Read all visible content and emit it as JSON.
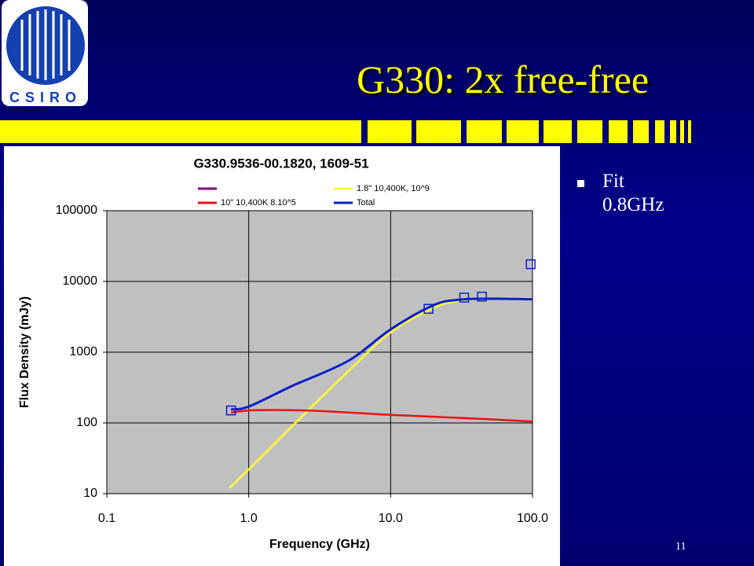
{
  "slide": {
    "title": "G330:  2x free-free",
    "logo": "CSIRO",
    "bullets": [
      "Fit 0.8GHz"
    ],
    "page_number": "11"
  },
  "chart_data": {
    "type": "line",
    "title": "G330.9536-00.1820, 1609-51",
    "x_label": "Frequency (GHz)",
    "y_label": "Flux Density (mJy)",
    "xlog": true,
    "ylog": true,
    "grid": true,
    "xlim": [
      0.1,
      100
    ],
    "ylim": [
      10,
      100000
    ],
    "xticks": [
      0.1,
      {
        "value": 1,
        "label": "1.0"
      },
      {
        "value": 10,
        "label": "10.0"
      },
      {
        "value": 100,
        "label": "100.0"
      }
    ],
    "yticks": [
      10,
      100,
      1000,
      10000,
      100000
    ],
    "series": [
      {
        "name": "1.8\" 10,400K, 10^9",
        "color": "#ffff33",
        "x": [
          0.73,
          1,
          2,
          5,
          10,
          20,
          30,
          50,
          100
        ],
        "values": [
          12,
          22,
          88,
          530,
          1900,
          4200,
          5300,
          5700,
          5700
        ]
      },
      {
        "name": "10\" 10,400K 8.10^5",
        "color": "#ee1111",
        "x": [
          0.75,
          1,
          1.5,
          3,
          10,
          30,
          100
        ],
        "values": [
          140,
          150,
          152,
          148,
          130,
          118,
          105
        ]
      },
      {
        "name": "Total",
        "color": "#0a1ec8",
        "x": [
          0.75,
          1,
          2,
          5,
          10,
          20,
          30,
          50,
          100
        ],
        "values": [
          155,
          170,
          330,
          750,
          2100,
          4600,
          5500,
          5700,
          5600
        ]
      }
    ],
    "points": {
      "color": "#0a1ec8",
      "x": [
        0.75,
        18.5,
        33,
        44,
        97
      ],
      "values": [
        150,
        4100,
        5900,
        6100,
        17500
      ]
    }
  }
}
